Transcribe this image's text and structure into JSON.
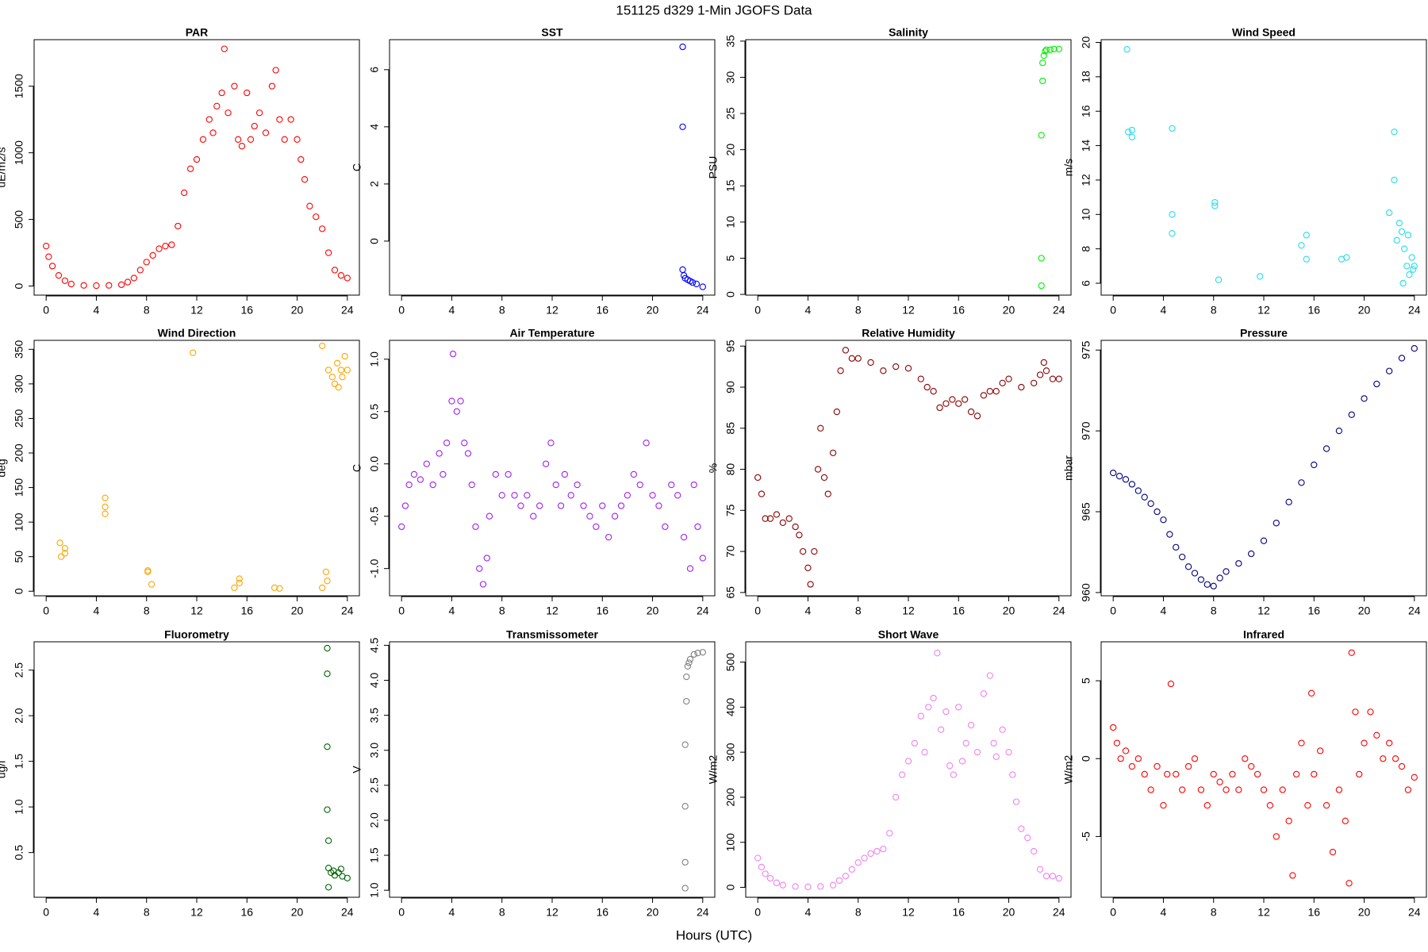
{
  "title": "151125   d329   1-Min  JGOFS Data",
  "x_label": "Hours (UTC)",
  "chart_data": [
    {
      "type": "scatter",
      "title": "PAR",
      "y_label": "uE/m2/s",
      "color": "#ff0000",
      "x": [
        0,
        0.2,
        0.5,
        1,
        1.5,
        2,
        3,
        4,
        5,
        6,
        6.5,
        7,
        7.5,
        8,
        8.5,
        9,
        9.5,
        10,
        10.5,
        11,
        11.5,
        12,
        12.5,
        13,
        13.3,
        13.6,
        14,
        14.2,
        14.5,
        15,
        15.3,
        15.6,
        16,
        16.3,
        16.6,
        17,
        17.5,
        18,
        18.3,
        18.6,
        19,
        19.5,
        20,
        20.3,
        20.6,
        21,
        21.5,
        22,
        22.5,
        23,
        23.5,
        24
      ],
      "values": [
        300,
        220,
        150,
        80,
        40,
        15,
        5,
        3,
        5,
        10,
        30,
        60,
        120,
        180,
        230,
        280,
        300,
        310,
        450,
        700,
        880,
        950,
        1100,
        1250,
        1150,
        1350,
        1450,
        1780,
        1300,
        1500,
        1100,
        1050,
        1450,
        1100,
        1200,
        1300,
        1150,
        1500,
        1620,
        1250,
        1100,
        1250,
        1100,
        950,
        800,
        600,
        520,
        430,
        250,
        120,
        80,
        60
      ],
      "xlim": [
        -0.96,
        24.96
      ],
      "xticks": [
        0,
        4,
        8,
        12,
        16,
        20,
        24
      ],
      "ylim": [
        -68,
        1849
      ],
      "yticks": [
        0,
        500,
        1000,
        1500
      ]
    },
    {
      "type": "scatter",
      "title": "SST",
      "y_label": "C",
      "color": "#0000ff",
      "x": [
        22.4,
        22.4,
        22.4,
        22.5,
        22.6,
        22.8,
        23,
        23.2,
        23.5,
        24
      ],
      "values": [
        6.8,
        4.0,
        -1.0,
        -1.2,
        -1.3,
        -1.35,
        -1.4,
        -1.45,
        -1.5,
        -1.6
      ],
      "xlim": [
        -0.96,
        24.96
      ],
      "xticks": [
        0,
        4,
        8,
        12,
        16,
        20,
        24
      ],
      "ylim": [
        -1.89,
        7.05
      ],
      "yticks": [
        0,
        2,
        4,
        6
      ]
    },
    {
      "type": "scatter",
      "title": "Salinity",
      "y_label": "PSU",
      "color": "#00ee00",
      "x": [
        22.6,
        22.6,
        22.6,
        22.7,
        22.7,
        22.8,
        22.9,
        23,
        23.3,
        23.6,
        24
      ],
      "values": [
        1.2,
        5,
        22,
        29.5,
        32,
        33,
        33.6,
        33.8,
        33.8,
        33.9,
        33.9
      ],
      "xlim": [
        -0.96,
        24.96
      ],
      "xticks": [
        0,
        4,
        8,
        12,
        16,
        20,
        24
      ],
      "ylim": [
        -0.1,
        35.2
      ],
      "yticks": [
        0,
        5,
        10,
        15,
        20,
        25,
        30,
        35
      ]
    },
    {
      "type": "scatter",
      "title": "Wind Speed",
      "y_label": "m/s",
      "color": "#22ddee",
      "x": [
        1.1,
        1.2,
        1.5,
        1.5,
        4.7,
        4.7,
        4.7,
        8.1,
        8.1,
        8.4,
        11.7,
        15.0,
        15.4,
        15.4,
        18.2,
        18.6,
        22.0,
        22.4,
        22.4,
        22.6,
        22.8,
        23,
        23.1,
        23.2,
        23.4,
        23.5,
        23.6,
        23.8,
        23.9,
        24
      ],
      "values": [
        19.6,
        14.8,
        14.9,
        14.5,
        15.0,
        10.0,
        8.9,
        10.7,
        10.5,
        6.2,
        6.4,
        8.2,
        8.8,
        7.4,
        7.4,
        7.5,
        10.1,
        14.8,
        12.0,
        8.5,
        9.5,
        9,
        6,
        8,
        7,
        8.8,
        6.5,
        7.5,
        6.8,
        7
      ],
      "xlim": [
        -0.96,
        24.96
      ],
      "xticks": [
        0,
        4,
        8,
        12,
        16,
        20,
        24
      ],
      "ylim": [
        5.31,
        20.16
      ],
      "yticks": [
        6,
        8,
        10,
        12,
        14,
        16,
        18,
        20
      ]
    },
    {
      "type": "scatter",
      "title": "Wind Direction",
      "y_label": "deg",
      "color": "#ffa500",
      "x": [
        1.1,
        1.2,
        1.5,
        1.5,
        4.7,
        4.7,
        4.7,
        8.1,
        8.1,
        8.4,
        11.7,
        15,
        15.4,
        15.4,
        18.2,
        18.6,
        22,
        22,
        22.3,
        22.4,
        22.5,
        22.8,
        23,
        23.2,
        23.3,
        23.5,
        23.6,
        23.8,
        24
      ],
      "values": [
        70,
        50,
        55,
        62,
        135,
        122,
        112,
        30,
        28,
        10,
        345,
        5,
        18,
        12,
        5,
        4,
        355,
        5,
        28,
        15,
        320,
        310,
        300,
        330,
        295,
        320,
        310,
        340,
        320
      ],
      "xlim": [
        -0.96,
        24.96
      ],
      "xticks": [
        0,
        4,
        8,
        12,
        16,
        20,
        24
      ],
      "ylim": [
        -6.6,
        363
      ],
      "yticks": [
        0,
        50,
        100,
        150,
        200,
        250,
        300,
        350
      ]
    },
    {
      "type": "scatter",
      "title": "Air Temperature",
      "y_label": "C",
      "color": "#a020f0",
      "x": [
        0,
        0.3,
        0.6,
        1,
        1.5,
        2,
        2.5,
        3,
        3.3,
        3.6,
        4,
        4.1,
        4.4,
        4.7,
        5,
        5.3,
        5.6,
        5.9,
        6.2,
        6.5,
        6.8,
        7,
        7.5,
        8,
        8.5,
        9,
        9.5,
        10,
        10.5,
        11,
        11.5,
        11.9,
        12.3,
        12.7,
        13,
        13.5,
        14,
        14.5,
        15,
        15.5,
        16,
        16.5,
        17,
        17.5,
        18,
        18.5,
        19,
        19.5,
        20,
        20.5,
        21,
        21.5,
        22,
        22.5,
        23,
        23.3,
        23.6,
        24
      ],
      "values": [
        -0.6,
        -0.4,
        -0.2,
        -0.1,
        -0.15,
        0,
        -0.2,
        0.1,
        -0.1,
        0.2,
        0.6,
        1.05,
        0.5,
        0.6,
        0.2,
        0.1,
        -0.2,
        -0.6,
        -1.0,
        -1.15,
        -0.9,
        -0.5,
        -0.1,
        -0.3,
        -0.1,
        -0.3,
        -0.4,
        -0.3,
        -0.5,
        -0.4,
        0,
        0.2,
        -0.2,
        -0.4,
        -0.1,
        -0.3,
        -0.2,
        -0.4,
        -0.5,
        -0.6,
        -0.4,
        -0.7,
        -0.5,
        -0.4,
        -0.3,
        -0.1,
        -0.2,
        0.2,
        -0.3,
        -0.4,
        -0.6,
        -0.2,
        -0.3,
        -0.7,
        -1.0,
        -0.2,
        -0.6,
        -0.9
      ],
      "xlim": [
        -0.96,
        24.96
      ],
      "xticks": [
        0,
        4,
        8,
        12,
        16,
        20,
        24
      ],
      "ylim": [
        -1.26,
        1.18
      ],
      "yticks": [
        {
          "value": -1,
          "label": "-1.0"
        },
        -0.5,
        {
          "value": 0,
          "label": "0.0"
        },
        0.5,
        {
          "value": 1,
          "label": "1.0"
        }
      ]
    },
    {
      "type": "scatter",
      "title": "Relative Humidity",
      "y_label": "%",
      "color": "#8b0000",
      "x": [
        0,
        0.3,
        0.6,
        1,
        1.5,
        2,
        2.5,
        3,
        3.3,
        3.6,
        4,
        4.2,
        4.5,
        4.8,
        5,
        5.3,
        5.6,
        6,
        6.3,
        6.6,
        7,
        7.5,
        8,
        9,
        10,
        11,
        12,
        13,
        13.5,
        14,
        14.5,
        15,
        15.5,
        16,
        16.5,
        17,
        17.5,
        18,
        18.5,
        19,
        19.5,
        20,
        21,
        22,
        22.5,
        22.8,
        23,
        23.5,
        24
      ],
      "values": [
        79,
        77,
        74,
        74,
        74.5,
        73.5,
        74,
        73,
        72,
        70,
        68,
        66,
        70,
        80,
        85,
        79,
        77,
        82,
        87,
        92,
        94.5,
        93.5,
        93.5,
        93,
        92,
        92.5,
        92.3,
        91,
        90,
        89.5,
        87.5,
        88,
        88.5,
        88,
        88.5,
        87,
        86.5,
        89,
        89.5,
        89.5,
        90.5,
        91,
        90,
        90.5,
        91.5,
        93,
        92,
        91,
        91
      ],
      "xlim": [
        -0.96,
        24.96
      ],
      "xticks": [
        0,
        4,
        8,
        12,
        16,
        20,
        24
      ],
      "ylim": [
        64.6,
        95.7
      ],
      "yticks": [
        65,
        70,
        75,
        80,
        85,
        90,
        95
      ]
    },
    {
      "type": "scatter",
      "title": "Pressure",
      "y_label": "mbar",
      "color": "#000080",
      "x": [
        0,
        0.5,
        1,
        1.5,
        2,
        2.5,
        3,
        3.5,
        4,
        4.5,
        5,
        5.5,
        6,
        6.5,
        7,
        7.5,
        8,
        8.5,
        9,
        10,
        11,
        12,
        13,
        14,
        15,
        16,
        17,
        18,
        19,
        20,
        21,
        22,
        23,
        24
      ],
      "values": [
        967.4,
        967.2,
        967.0,
        966.7,
        966.3,
        965.9,
        965.5,
        965.0,
        964.5,
        963.6,
        962.8,
        962.2,
        961.6,
        961.2,
        960.8,
        960.5,
        960.4,
        960.9,
        961.3,
        961.8,
        962.4,
        963.2,
        964.3,
        965.6,
        966.8,
        967.9,
        968.9,
        970.0,
        971.0,
        972.0,
        972.9,
        973.7,
        974.5,
        975.1
      ],
      "xlim": [
        -0.96,
        24.96
      ],
      "xticks": [
        0,
        4,
        8,
        12,
        16,
        20,
        24
      ],
      "ylim": [
        959.8,
        975.6
      ],
      "yticks": [
        960,
        965,
        970,
        975
      ]
    },
    {
      "type": "scatter",
      "title": "Fluorometry",
      "y_label": "ug/l",
      "color": "#006400",
      "x": [
        22.4,
        22.4,
        22.4,
        22.4,
        22.5,
        22.5,
        22.5,
        22.7,
        22.9,
        23,
        23.3,
        23.5,
        23.6,
        24
      ],
      "values": [
        2.74,
        2.46,
        1.66,
        0.97,
        0.63,
        0.12,
        0.33,
        0.28,
        0.3,
        0.25,
        0.28,
        0.32,
        0.24,
        0.22
      ],
      "xlim": [
        -0.96,
        24.96
      ],
      "xticks": [
        0,
        4,
        8,
        12,
        16,
        20,
        24
      ],
      "ylim": [
        0.01,
        2.81
      ],
      "yticks": [
        0.5,
        {
          "value": 1,
          "label": "1.0"
        },
        1.5,
        {
          "value": 2,
          "label": "2.0"
        },
        2.5
      ]
    },
    {
      "type": "scatter",
      "title": "Transmissometer",
      "y_label": "V",
      "color": "#808080",
      "x": [
        22.6,
        22.6,
        22.6,
        22.6,
        22.7,
        22.7,
        22.8,
        22.9,
        23,
        23.3,
        23.6,
        24
      ],
      "values": [
        1.03,
        1.4,
        2.2,
        3.08,
        3.7,
        4.05,
        4.2,
        4.25,
        4.3,
        4.37,
        4.39,
        4.4
      ],
      "xlim": [
        -0.96,
        24.96
      ],
      "xticks": [
        0,
        4,
        8,
        12,
        16,
        20,
        24
      ],
      "ylim": [
        0.9,
        4.55
      ],
      "yticks": [
        {
          "value": 1,
          "label": "1.0"
        },
        1.5,
        {
          "value": 2,
          "label": "2.0"
        },
        2.5,
        {
          "value": 3,
          "label": "3.0"
        },
        3.5,
        {
          "value": 4,
          "label": "4.0"
        },
        4.5
      ]
    },
    {
      "type": "scatter",
      "title": "Short Wave",
      "y_label": "W/m2",
      "color": "#ee82ee",
      "x": [
        0,
        0.3,
        0.6,
        1,
        1.5,
        2,
        3,
        4,
        5,
        6,
        6.5,
        7,
        7.5,
        8,
        8.5,
        9,
        9.5,
        10,
        10.5,
        11,
        11.5,
        12,
        12.5,
        13,
        13.3,
        13.6,
        14,
        14.3,
        14.6,
        15,
        15.3,
        15.6,
        16,
        16.3,
        16.6,
        17,
        17.5,
        18,
        18.5,
        18.8,
        19,
        19.5,
        20,
        20.3,
        20.6,
        21,
        21.5,
        22,
        22.5,
        23,
        23.5,
        24
      ],
      "values": [
        65,
        45,
        30,
        20,
        10,
        5,
        2,
        1,
        2,
        5,
        15,
        25,
        40,
        55,
        65,
        75,
        80,
        85,
        120,
        200,
        250,
        280,
        320,
        380,
        300,
        400,
        420,
        520,
        350,
        390,
        270,
        250,
        400,
        280,
        320,
        360,
        300,
        430,
        470,
        320,
        290,
        350,
        300,
        250,
        190,
        130,
        110,
        80,
        40,
        25,
        25,
        20
      ],
      "xlim": [
        -0.96,
        24.96
      ],
      "xticks": [
        0,
        4,
        8,
        12,
        16,
        20,
        24
      ],
      "ylim": [
        -22,
        545
      ],
      "yticks": [
        0,
        100,
        200,
        300,
        400,
        500
      ]
    },
    {
      "type": "scatter",
      "title": "Infrared",
      "y_label": "W/m2",
      "color": "#ff0000",
      "x": [
        0,
        0.3,
        0.6,
        1,
        1.5,
        2,
        2.5,
        3,
        3.5,
        4,
        4.3,
        4.6,
        5,
        5.5,
        6,
        6.5,
        7,
        7.5,
        8,
        8.5,
        9,
        9.5,
        10,
        10.5,
        11,
        11.5,
        12,
        12.5,
        13,
        13.5,
        14,
        14.3,
        14.6,
        15,
        15.5,
        15.8,
        16,
        16.5,
        17,
        17.5,
        18,
        18.5,
        18.8,
        19,
        19.3,
        19.6,
        20,
        20.5,
        21,
        21.5,
        22,
        22.5,
        23,
        23.5,
        24
      ],
      "values": [
        2,
        1,
        0,
        0.5,
        -0.5,
        0,
        -1,
        -2,
        -0.5,
        -3,
        -1,
        4.8,
        -1,
        -2,
        -0.5,
        0,
        -2,
        -3,
        -1,
        -1.5,
        -2,
        -1,
        -2,
        0,
        -0.5,
        -1,
        -2,
        -3,
        -5,
        -2,
        -4,
        -7.5,
        -1,
        1,
        -3,
        4.2,
        -1,
        0.5,
        -3,
        -6,
        -2,
        -4,
        -8,
        6.8,
        3,
        -1,
        1,
        3,
        1.5,
        0,
        1,
        0,
        -0.5,
        -2,
        -1.2
      ],
      "xlim": [
        -0.96,
        24.96
      ],
      "xticks": [
        0,
        4,
        8,
        12,
        16,
        20,
        24
      ],
      "ylim": [
        -8.9,
        7.5
      ],
      "yticks": [
        -5,
        0,
        5
      ]
    }
  ]
}
